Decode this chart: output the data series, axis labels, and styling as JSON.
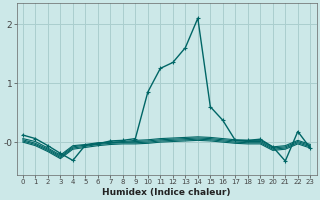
{
  "xlabel": "Humidex (Indice chaleur)",
  "bg_color": "#cce8e8",
  "grid_color": "#aacece",
  "line_color": "#006666",
  "xlim": [
    -0.5,
    23.5
  ],
  "ylim": [
    -0.55,
    2.35
  ],
  "x_ticks": [
    0,
    1,
    2,
    3,
    4,
    5,
    6,
    7,
    8,
    9,
    10,
    11,
    12,
    13,
    14,
    15,
    16,
    17,
    18,
    19,
    20,
    21,
    22,
    23
  ],
  "yticks": [
    0.0,
    1.0,
    2.0
  ],
  "ytick_labels": [
    "-0",
    "1",
    "2"
  ],
  "lines": [
    [
      0.12,
      0.06,
      -0.06,
      -0.19,
      -0.31,
      -0.05,
      -0.03,
      0.02,
      0.03,
      0.06,
      0.85,
      1.25,
      1.35,
      1.6,
      2.1,
      0.6,
      0.37,
      0.03,
      0.03,
      0.05,
      -0.08,
      -0.32,
      0.18,
      -0.1
    ],
    [
      0.06,
      0.01,
      -0.1,
      -0.22,
      -0.06,
      -0.04,
      -0.01,
      0.0,
      0.01,
      0.03,
      0.04,
      0.06,
      0.07,
      0.08,
      0.09,
      0.08,
      0.06,
      0.04,
      0.03,
      0.03,
      -0.08,
      -0.06,
      0.03,
      -0.04
    ],
    [
      0.04,
      -0.02,
      -0.12,
      -0.24,
      -0.08,
      -0.05,
      -0.02,
      -0.01,
      0.0,
      0.01,
      0.02,
      0.04,
      0.05,
      0.06,
      0.07,
      0.06,
      0.04,
      0.02,
      0.01,
      0.01,
      -0.1,
      -0.08,
      0.01,
      -0.06
    ],
    [
      0.02,
      -0.04,
      -0.14,
      -0.26,
      -0.1,
      -0.07,
      -0.04,
      -0.02,
      -0.01,
      -0.01,
      0.0,
      0.02,
      0.03,
      0.04,
      0.05,
      0.04,
      0.02,
      0.0,
      -0.01,
      -0.01,
      -0.12,
      -0.1,
      -0.01,
      -0.08
    ],
    [
      0.0,
      -0.06,
      -0.16,
      -0.28,
      -0.12,
      -0.09,
      -0.06,
      -0.04,
      -0.03,
      -0.03,
      -0.02,
      0.0,
      0.01,
      0.02,
      0.03,
      0.02,
      0.0,
      -0.02,
      -0.03,
      -0.03,
      -0.14,
      -0.12,
      -0.03,
      -0.1
    ]
  ],
  "marker_line_indices": [
    0
  ]
}
